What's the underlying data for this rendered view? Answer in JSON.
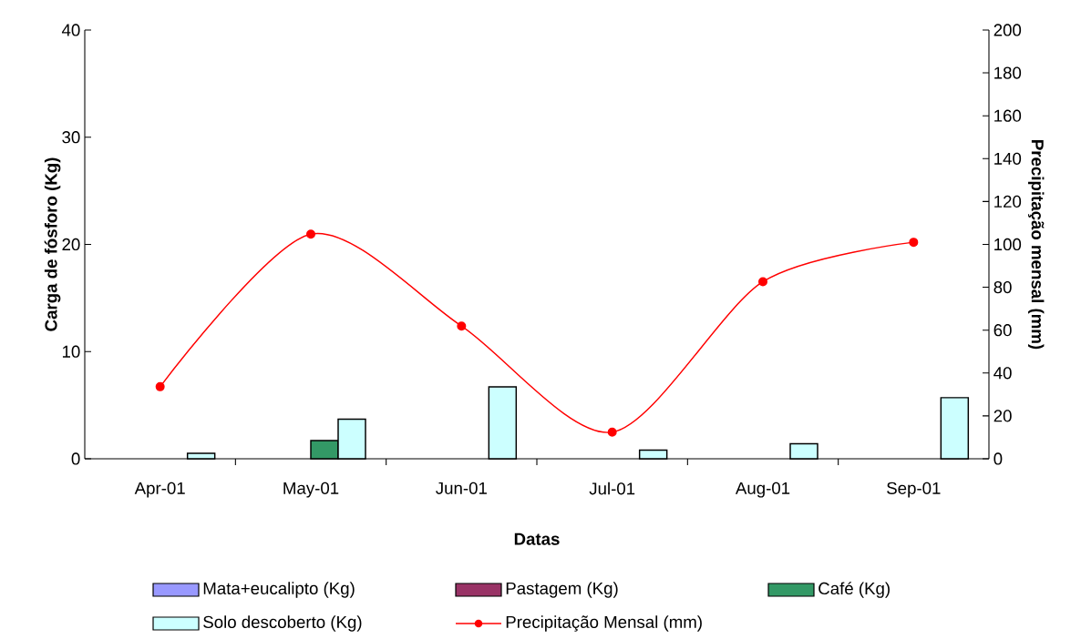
{
  "chart_data": {
    "type": "bar",
    "xlabel": "Datas",
    "ylabel": "Carga de fósforo (Kg)",
    "y2label": "Precipitação mensal (mm)",
    "categories": [
      "Apr-01",
      "May-01",
      "Jun-01",
      "Jul-01",
      "Aug-01",
      "Sep-01"
    ],
    "ylim": [
      0,
      40
    ],
    "yticks": [
      0,
      10,
      20,
      30,
      40
    ],
    "y2lim": [
      0,
      200
    ],
    "y2ticks": [
      0,
      20,
      40,
      60,
      80,
      100,
      120,
      140,
      160,
      180,
      200
    ],
    "legend": "bottom",
    "grid": false,
    "series": [
      {
        "name": "Mata+eucalipto (Kg)",
        "color": "#9999ff",
        "values": [
          null,
          null,
          null,
          null,
          null,
          null
        ]
      },
      {
        "name": "Pastagem (Kg)",
        "color": "#993366",
        "values": [
          null,
          null,
          null,
          null,
          null,
          null
        ]
      },
      {
        "name": "Café (Kg)",
        "color": "#339966",
        "values": [
          null,
          1.7,
          null,
          null,
          null,
          null
        ]
      },
      {
        "name": "Solo descoberto (Kg)",
        "color": "#ccffff",
        "values": [
          0.5,
          3.7,
          6.7,
          0.8,
          1.4,
          5.7
        ]
      },
      {
        "name": "Precipitação Mensal (mm)",
        "type": "line",
        "axis": "y2",
        "marker": "circle",
        "color": "#ff0000",
        "values": [
          33.6,
          104.8,
          61.9,
          12.4,
          82.6,
          101
        ]
      }
    ]
  }
}
